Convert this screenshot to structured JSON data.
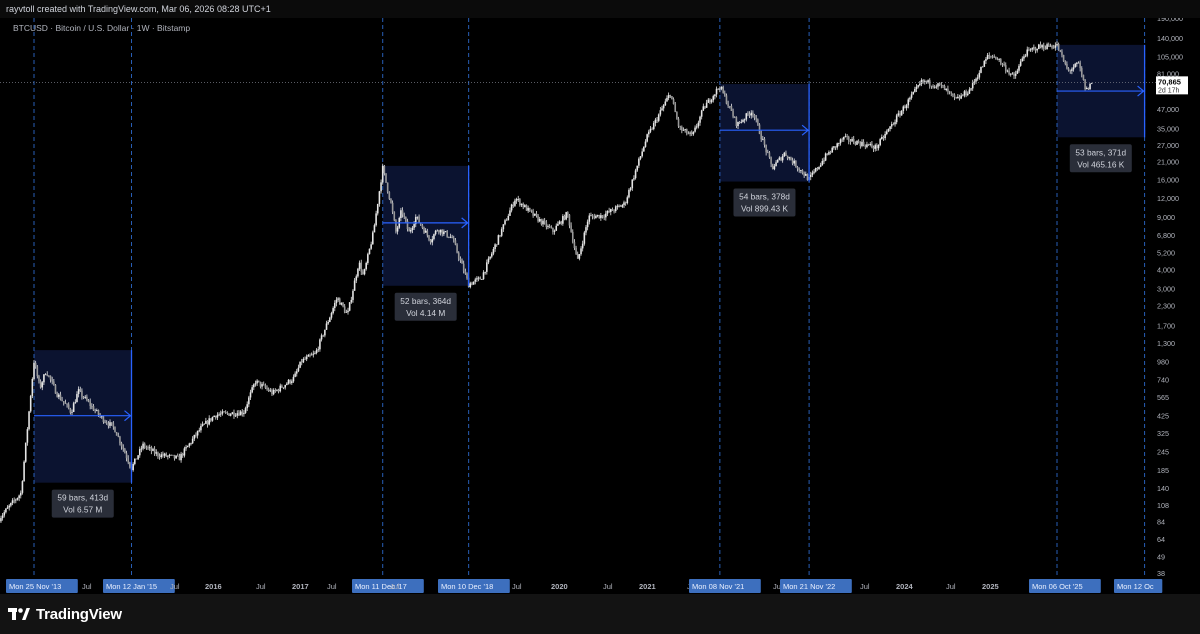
{
  "header": {
    "credit": "rayvtoll created with TradingView.com, Mar 06, 2026 08:28 UTC+1",
    "symbol_line": "BTCUSD · Bitcoin / U.S. Dollar · 1W · Bitstamp"
  },
  "footer": {
    "brand": "TradingView"
  },
  "colors": {
    "background": "#000000",
    "candle": "#e6e6e6",
    "shade": "#0b1330",
    "accent": "#2962ff",
    "dashed": "#2f6fd6",
    "date_badge": "#1e3a8a",
    "label_bg": "#2a2e39"
  },
  "chart_data": {
    "type": "candlestick",
    "title": "",
    "y_scale": "log",
    "y_ticks": [
      "190,000",
      "140,000",
      "105,000",
      "81,000",
      "63,000",
      "47,000",
      "35,000",
      "27,000",
      "21,000",
      "16,000",
      "12,000",
      "9,000",
      "6,800",
      "5,200",
      "4,000",
      "3,000",
      "2,300",
      "1,700",
      "1,300",
      "980",
      "740",
      "565",
      "425",
      "325",
      "245",
      "185",
      "140",
      "108",
      "84",
      "64",
      "49",
      "38"
    ],
    "last_price": {
      "value": "70,865",
      "countdown": "2d 17h"
    },
    "x_ticks": [
      {
        "label": "Mon 25 Nov '13",
        "highlight": true
      },
      {
        "label": "Jul",
        "highlight": false
      },
      {
        "label": "Mon 12 Jan '15",
        "highlight": true
      },
      {
        "label": "Jul",
        "highlight": false
      },
      {
        "label": "2016",
        "highlight": false
      },
      {
        "label": "Jul",
        "highlight": false
      },
      {
        "label": "2017",
        "highlight": false
      },
      {
        "label": "Jul",
        "highlight": false
      },
      {
        "label": "Mon 11 Dec '17",
        "highlight": true
      },
      {
        "label": "Jul",
        "highlight": false
      },
      {
        "label": "Mon 10 Dec '18",
        "highlight": true
      },
      {
        "label": "Jul",
        "highlight": false
      },
      {
        "label": "2020",
        "highlight": false
      },
      {
        "label": "Jul",
        "highlight": false
      },
      {
        "label": "2021",
        "highlight": false
      },
      {
        "label": "J",
        "highlight": false
      },
      {
        "label": "Mon 08 Nov '21",
        "highlight": true
      },
      {
        "label": "Ju",
        "highlight": false
      },
      {
        "label": "Mon 21 Nov '22",
        "highlight": true
      },
      {
        "label": "Jul",
        "highlight": false
      },
      {
        "label": "2024",
        "highlight": false
      },
      {
        "label": "Jul",
        "highlight": false
      },
      {
        "label": "2025",
        "highlight": false
      },
      {
        "label": "Mon 06 Oct '25",
        "highlight": true
      },
      {
        "label": "Mon 12 Oc",
        "highlight": true
      }
    ],
    "price_path": [
      {
        "date": "2013-07-01",
        "close": 88
      },
      {
        "date": "2013-10-01",
        "close": 130
      },
      {
        "date": "2013-11-25",
        "close": 980
      },
      {
        "date": "2013-12-20",
        "close": 650
      },
      {
        "date": "2014-01-15",
        "close": 850
      },
      {
        "date": "2014-03-01",
        "close": 600
      },
      {
        "date": "2014-05-01",
        "close": 450
      },
      {
        "date": "2014-06-01",
        "close": 620
      },
      {
        "date": "2014-09-01",
        "close": 420
      },
      {
        "date": "2014-11-01",
        "close": 350
      },
      {
        "date": "2015-01-12",
        "close": 190
      },
      {
        "date": "2015-03-01",
        "close": 270
      },
      {
        "date": "2015-05-01",
        "close": 235
      },
      {
        "date": "2015-08-01",
        "close": 220
      },
      {
        "date": "2015-11-01",
        "close": 350
      },
      {
        "date": "2016-01-01",
        "close": 430
      },
      {
        "date": "2016-05-01",
        "close": 450
      },
      {
        "date": "2016-06-20",
        "close": 720
      },
      {
        "date": "2016-09-01",
        "close": 600
      },
      {
        "date": "2016-12-01",
        "close": 760
      },
      {
        "date": "2017-01-01",
        "close": 980
      },
      {
        "date": "2017-03-01",
        "close": 1100
      },
      {
        "date": "2017-06-01",
        "close": 2600
      },
      {
        "date": "2017-07-15",
        "close": 2000
      },
      {
        "date": "2017-09-01",
        "close": 4500
      },
      {
        "date": "2017-09-20",
        "close": 3600
      },
      {
        "date": "2017-11-01",
        "close": 7000
      },
      {
        "date": "2017-12-11",
        "close": 19000
      },
      {
        "date": "2018-01-15",
        "close": 11000
      },
      {
        "date": "2018-02-06",
        "close": 7000
      },
      {
        "date": "2018-03-01",
        "close": 10000
      },
      {
        "date": "2018-04-01",
        "close": 7000
      },
      {
        "date": "2018-05-01",
        "close": 9000
      },
      {
        "date": "2018-07-01",
        "close": 6300
      },
      {
        "date": "2018-08-01",
        "close": 7500
      },
      {
        "date": "2018-10-01",
        "close": 6500
      },
      {
        "date": "2018-12-10",
        "close": 3200
      },
      {
        "date": "2019-02-01",
        "close": 3500
      },
      {
        "date": "2019-06-26",
        "close": 12000
      },
      {
        "date": "2019-09-01",
        "close": 9500
      },
      {
        "date": "2019-12-01",
        "close": 7200
      },
      {
        "date": "2020-02-01",
        "close": 9500
      },
      {
        "date": "2020-03-15",
        "close": 4500
      },
      {
        "date": "2020-05-01",
        "close": 9000
      },
      {
        "date": "2020-07-01",
        "close": 9200
      },
      {
        "date": "2020-10-01",
        "close": 11000
      },
      {
        "date": "2021-01-01",
        "close": 30000
      },
      {
        "date": "2021-04-12",
        "close": 60000
      },
      {
        "date": "2021-05-20",
        "close": 35000
      },
      {
        "date": "2021-07-15",
        "close": 31000
      },
      {
        "date": "2021-09-01",
        "close": 48000
      },
      {
        "date": "2021-11-08",
        "close": 67000
      },
      {
        "date": "2022-01-20",
        "close": 37000
      },
      {
        "date": "2022-03-25",
        "close": 46000
      },
      {
        "date": "2022-06-18",
        "close": 19000
      },
      {
        "date": "2022-08-10",
        "close": 24000
      },
      {
        "date": "2022-10-01",
        "close": 19500
      },
      {
        "date": "2022-11-21",
        "close": 16000
      },
      {
        "date": "2023-02-01",
        "close": 23000
      },
      {
        "date": "2023-04-15",
        "close": 30000
      },
      {
        "date": "2023-09-01",
        "close": 26000
      },
      {
        "date": "2023-12-01",
        "close": 42000
      },
      {
        "date": "2024-03-14",
        "close": 72000
      },
      {
        "date": "2024-06-01",
        "close": 67000
      },
      {
        "date": "2024-08-05",
        "close": 54000
      },
      {
        "date": "2024-10-01",
        "close": 63000
      },
      {
        "date": "2024-12-17",
        "close": 106000
      },
      {
        "date": "2025-01-20",
        "close": 105000
      },
      {
        "date": "2025-04-07",
        "close": 76000
      },
      {
        "date": "2025-05-22",
        "close": 110000
      },
      {
        "date": "2025-07-14",
        "close": 122000
      },
      {
        "date": "2025-10-06",
        "close": 125000
      },
      {
        "date": "2025-11-21",
        "close": 84000
      },
      {
        "date": "2026-01-05",
        "close": 94000
      },
      {
        "date": "2026-02-06",
        "close": 62000
      },
      {
        "date": "2026-03-02",
        "close": 70865
      }
    ],
    "drawdown_ranges": [
      {
        "start": "2013-11-25",
        "end": "2015-01-12",
        "high": 1163,
        "low": 152,
        "measure": [
          425
        ],
        "label_bars": "59 bars, 413d",
        "label_vol": "Vol 6.57 M"
      },
      {
        "start": "2017-12-11",
        "end": "2018-12-10",
        "high": 19666,
        "low": 3122,
        "measure": [
          8200
        ],
        "label_bars": "52 bars, 364d",
        "label_vol": "Vol 4.14 M"
      },
      {
        "start": "2021-11-08",
        "end": "2022-11-21",
        "high": 69000,
        "low": 15460,
        "measure": [
          34000
        ],
        "label_bars": "54 bars, 378d",
        "label_vol": "Vol 899.43 K"
      },
      {
        "start": "2025-10-06",
        "end": "2026-10-12",
        "high": 126000,
        "low": 30500,
        "measure": [
          62000
        ],
        "label_bars": "53 bars, 371d",
        "label_vol": "Vol 465.16 K"
      }
    ]
  }
}
